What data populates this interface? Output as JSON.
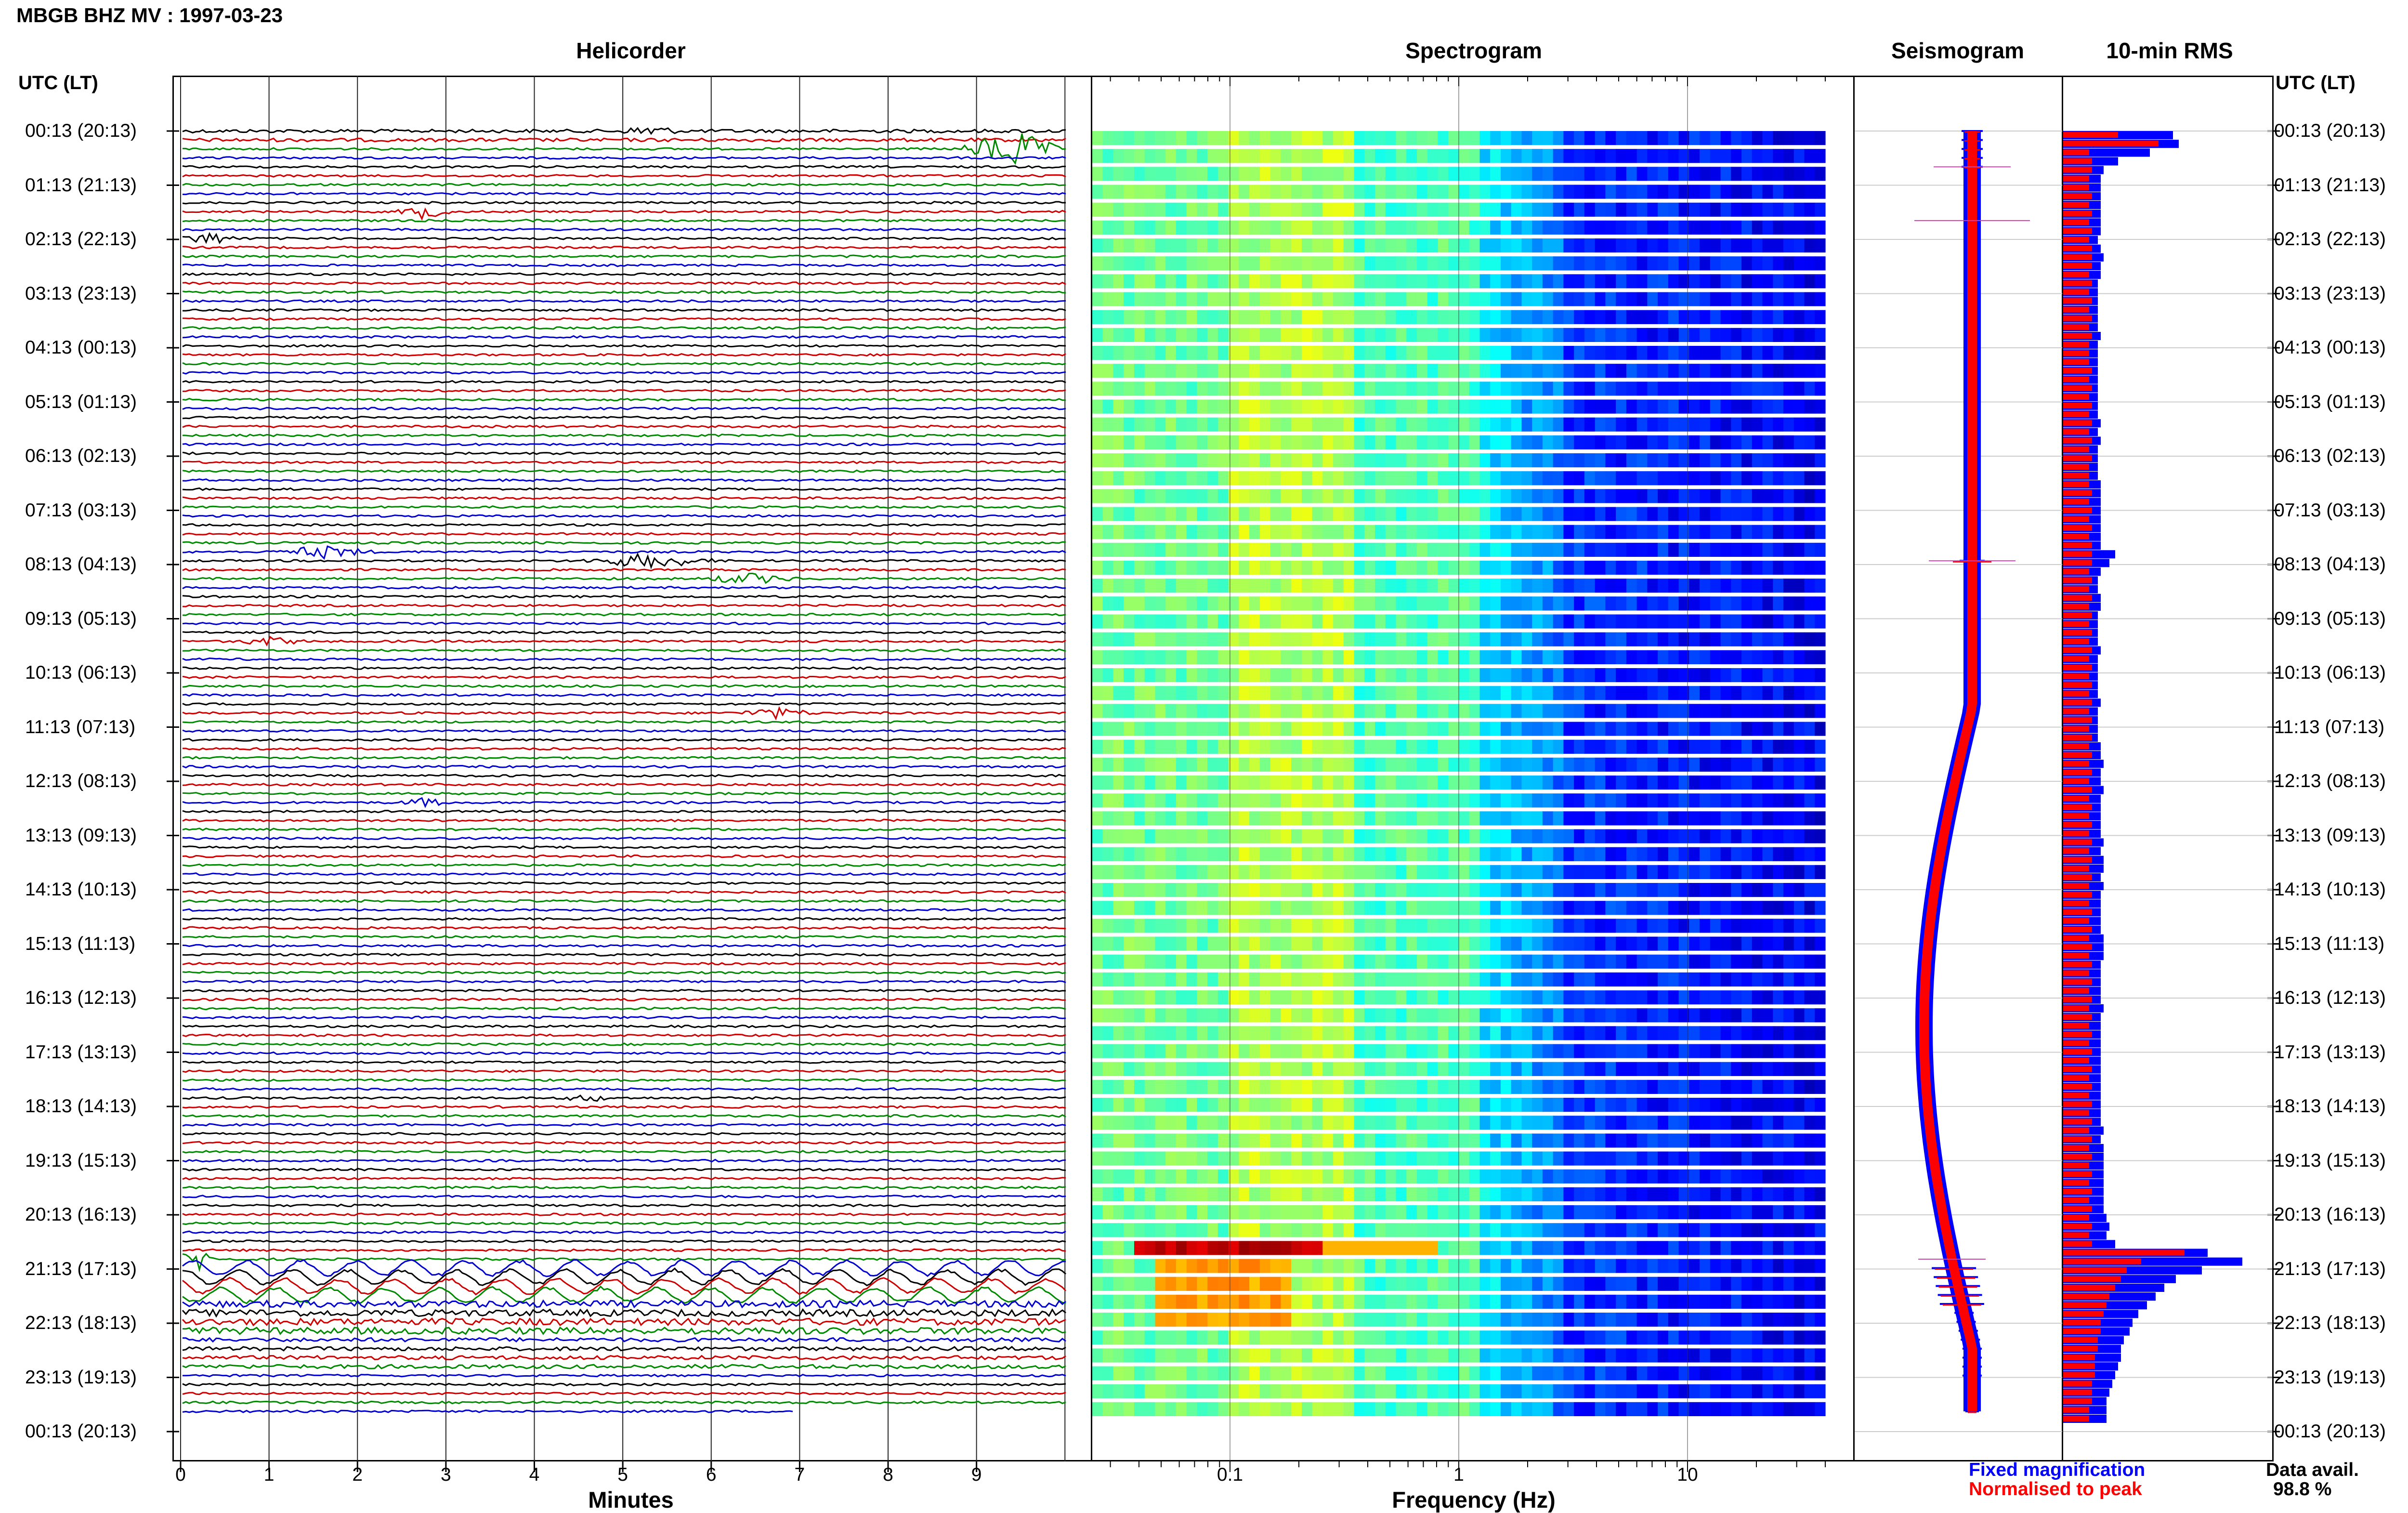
{
  "header": {
    "title": "MBGB BHZ MV : 1997-03-23"
  },
  "panels": {
    "helicorder": "Helicorder",
    "spectrogram": "Spectrogram",
    "seismogram": "Seismogram",
    "rms": "10-min RMS"
  },
  "axis": {
    "utc_left": "UTC (LT)",
    "utc_right": "UTC (LT)",
    "helicorder_xlabel": "Minutes",
    "spectrogram_xlabel": "Frequency (Hz)"
  },
  "legend": {
    "fixed": "Fixed magnification",
    "normalised": "Normalised to peak",
    "data_avail_label": "Data avail.",
    "data_avail_value": "98.8 %"
  },
  "chart_data": {
    "type": "heatmap",
    "time_labels": [
      "00:13 (20:13)",
      "01:13 (21:13)",
      "02:13 (22:13)",
      "03:13 (23:13)",
      "04:13 (00:13)",
      "05:13 (01:13)",
      "06:13 (02:13)",
      "07:13 (03:13)",
      "08:13 (04:13)",
      "09:13 (05:13)",
      "10:13 (06:13)",
      "11:13 (07:13)",
      "12:13 (08:13)",
      "13:13 (09:13)",
      "14:13 (10:13)",
      "15:13 (11:13)",
      "16:13 (12:13)",
      "17:13 (13:13)",
      "18:13 (14:13)",
      "19:13 (15:13)",
      "20:13 (16:13)",
      "21:13 (17:13)",
      "22:13 (18:13)",
      "23:13 (19:13)",
      "00:13 (20:13)"
    ],
    "minutes_ticks": [
      "0",
      "1",
      "2",
      "3",
      "4",
      "5",
      "6",
      "7",
      "8",
      "9"
    ],
    "frequency_ticks": [
      "0.1",
      "1",
      "10"
    ],
    "frequency_range_hz": [
      0.025,
      40
    ],
    "helicorder_colors": [
      "#000000",
      "#cc0000",
      "#008800",
      "#0000cc"
    ],
    "rms_fixed": [
      3.8,
      4.0,
      3.0,
      1.9,
      1.4,
      1.3,
      1.3,
      1.3,
      1.3,
      1.3,
      1.3,
      1.3,
      1.2,
      1.3,
      1.4,
      1.3,
      1.3,
      1.2,
      1.2,
      1.2,
      1.2,
      1.2,
      1.2,
      1.3,
      1.2,
      1.2,
      1.2,
      1.2,
      1.2,
      1.2,
      1.2,
      1.2,
      1.2,
      1.3,
      1.2,
      1.3,
      1.2,
      1.2,
      1.2,
      1.2,
      1.3,
      1.3,
      1.3,
      1.3,
      1.3,
      1.3,
      1.3,
      1.3,
      1.8,
      1.6,
      1.3,
      1.2,
      1.2,
      1.3,
      1.3,
      1.2,
      1.2,
      1.2,
      1.2,
      1.3,
      1.2,
      1.2,
      1.2,
      1.2,
      1.2,
      1.3,
      1.2,
      1.2,
      1.2,
      1.2,
      1.3,
      1.3,
      1.4,
      1.3,
      1.3,
      1.4,
      1.3,
      1.3,
      1.3,
      1.3,
      1.3,
      1.4,
      1.3,
      1.4,
      1.4,
      1.3,
      1.4,
      1.3,
      1.3,
      1.3,
      1.3,
      1.3,
      1.4,
      1.4,
      1.4,
      1.3,
      1.3,
      1.3,
      1.3,
      1.3,
      1.4,
      1.3,
      1.3,
      1.3,
      1.3,
      1.3,
      1.3,
      1.3,
      1.3,
      1.3,
      1.3,
      1.3,
      1.3,
      1.3,
      1.4,
      1.3,
      1.4,
      1.4,
      1.4,
      1.4,
      1.4,
      1.4,
      1.4,
      1.4,
      1.5,
      1.6,
      1.5,
      1.8,
      5.0,
      6.2,
      4.8,
      3.9,
      3.5,
      3.2,
      2.9,
      2.6,
      2.4,
      2.3,
      2.1,
      2.0,
      2.0,
      1.9,
      1.8,
      1.7,
      1.6,
      1.5,
      1.5,
      1.5
    ],
    "rms_normalised": [
      1.9,
      3.3,
      0.9,
      1.0,
      1.0,
      0.9,
      0.9,
      1.0,
      0.9,
      1.0,
      0.9,
      1.0,
      0.9,
      1.0,
      1.0,
      1.0,
      0.9,
      1.0,
      0.9,
      1.0,
      0.9,
      1.0,
      0.9,
      1.0,
      0.9,
      0.9,
      0.9,
      1.0,
      0.9,
      1.0,
      0.9,
      1.0,
      0.9,
      1.0,
      0.9,
      1.0,
      0.9,
      1.0,
      0.9,
      0.9,
      0.9,
      1.0,
      0.9,
      1.0,
      0.9,
      1.0,
      0.9,
      1.0,
      1.0,
      1.0,
      0.9,
      1.0,
      0.9,
      1.0,
      0.9,
      1.0,
      0.9,
      1.0,
      0.9,
      1.0,
      0.9,
      1.0,
      0.9,
      1.0,
      0.9,
      1.0,
      0.9,
      1.0,
      0.9,
      1.0,
      0.9,
      1.0,
      0.9,
      1.0,
      0.9,
      1.0,
      0.9,
      1.0,
      0.9,
      1.0,
      0.9,
      1.0,
      0.9,
      1.0,
      0.9,
      1.0,
      0.9,
      1.0,
      0.9,
      1.0,
      0.9,
      1.0,
      0.9,
      1.0,
      0.9,
      1.0,
      0.9,
      1.0,
      0.9,
      1.0,
      0.9,
      1.0,
      0.9,
      1.0,
      0.9,
      1.0,
      0.9,
      1.0,
      0.9,
      1.0,
      0.9,
      1.0,
      0.9,
      1.0,
      0.9,
      1.0,
      0.9,
      1.0,
      0.9,
      1.0,
      0.9,
      1.0,
      0.9,
      1.0,
      0.9,
      1.0,
      0.9,
      1.0,
      4.2,
      2.7,
      2.2,
      2.0,
      1.8,
      1.6,
      1.5,
      1.4,
      1.3,
      1.3,
      1.2,
      1.2,
      1.1,
      1.1,
      1.1,
      1.0,
      1.0,
      1.0,
      0.9,
      0.9
    ]
  }
}
